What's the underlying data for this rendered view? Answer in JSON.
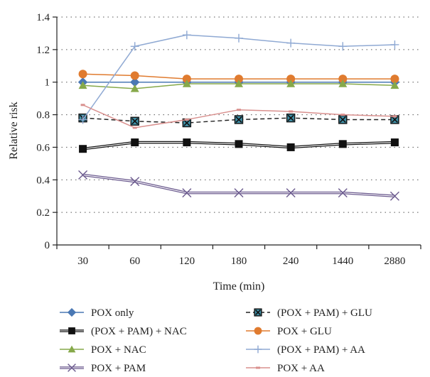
{
  "chart_data": {
    "type": "line",
    "title": "",
    "xlabel": "Time (min)",
    "ylabel": "Relative risk",
    "categories": [
      "30",
      "60",
      "120",
      "180",
      "240",
      "1440",
      "2880"
    ],
    "ylim": [
      0,
      1.4
    ],
    "yticks": [
      "0",
      "0.2",
      "0.4",
      "0.6",
      "0.8",
      "1",
      "1.2",
      "1.4"
    ],
    "grid": "horizontal dotted",
    "legend_position": "bottom",
    "series": [
      {
        "name": "POX only",
        "color": "#4A78B4",
        "marker": "diamond",
        "style": "solid",
        "values": [
          1.0,
          1.0,
          1.0,
          1.0,
          1.0,
          1.0,
          1.0
        ]
      },
      {
        "name": "(POX + PAM) + GLU",
        "color": "#222222",
        "marker_fill": "#3F8FA6",
        "marker": "square-x",
        "style": "dashed",
        "values": [
          0.78,
          0.76,
          0.75,
          0.77,
          0.78,
          0.77,
          0.77
        ]
      },
      {
        "name": "(POX + PAM) + NAC",
        "color": "#111111",
        "marker": "square",
        "style": "double",
        "values": [
          0.59,
          0.63,
          0.63,
          0.62,
          0.6,
          0.62,
          0.63
        ]
      },
      {
        "name": "POX + GLU",
        "color": "#E07B2F",
        "marker": "circle",
        "style": "solid",
        "values": [
          1.05,
          1.04,
          1.02,
          1.02,
          1.02,
          1.02,
          1.02
        ]
      },
      {
        "name": "POX + NAC",
        "color": "#86A94A",
        "marker": "triangle",
        "style": "solid",
        "values": [
          0.98,
          0.96,
          0.99,
          0.99,
          0.99,
          0.99,
          0.98
        ]
      },
      {
        "name": "(POX + PAM) + AA",
        "color": "#8FA9D3",
        "marker": "plus",
        "style": "solid",
        "values": [
          0.77,
          1.22,
          1.29,
          1.27,
          1.24,
          1.22,
          1.23
        ]
      },
      {
        "name": "POX + PAM",
        "color": "#6B5A8E",
        "marker": "x",
        "style": "double",
        "values": [
          0.43,
          0.39,
          0.32,
          0.32,
          0.32,
          0.32,
          0.3
        ]
      },
      {
        "name": "POX + AA",
        "color": "#D9908E",
        "marker": "dash",
        "style": "solid",
        "values": [
          0.86,
          0.72,
          0.77,
          0.83,
          0.82,
          0.8,
          0.79
        ]
      }
    ]
  }
}
